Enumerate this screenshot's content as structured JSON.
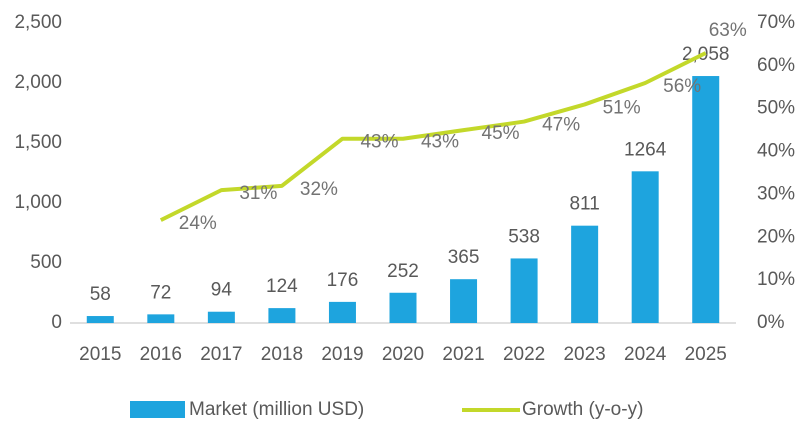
{
  "chart_data": {
    "type": "bar_line",
    "categories": [
      "2015",
      "2016",
      "2017",
      "2018",
      "2019",
      "2020",
      "2021",
      "2022",
      "2023",
      "2024",
      "2025"
    ],
    "series": [
      {
        "name": "Market (million USD)",
        "type": "bar",
        "color": "#1ea4de",
        "values": [
          58,
          72,
          94,
          124,
          176,
          252,
          365,
          538,
          811,
          1264,
          2058
        ],
        "value_labels": [
          "58",
          "72",
          "94",
          "124",
          "176",
          "252",
          "365",
          "538",
          "811",
          "1264",
          "2,058"
        ]
      },
      {
        "name": "Growth (y-o-y)",
        "type": "line",
        "axis": "y2",
        "color": "#c3d82a",
        "values": [
          null,
          24,
          31,
          32,
          43,
          43,
          45,
          47,
          51,
          56,
          63
        ],
        "value_labels": [
          null,
          "24%",
          "31%",
          "32%",
          "43%",
          "43%",
          "45%",
          "47%",
          "51%",
          "56%",
          "63%"
        ]
      }
    ],
    "ylim": [
      0,
      2500
    ],
    "yticks": [
      0,
      500,
      {
        "value": 1000,
        "label": "1,000"
      },
      {
        "value": 1500,
        "label": "1,500"
      },
      {
        "value": 2000,
        "label": "2,000"
      },
      {
        "value": 2500,
        "label": "2,500"
      }
    ],
    "y2lim": [
      0,
      70
    ],
    "y2ticks": [
      {
        "value": 0,
        "label": "0%"
      },
      {
        "value": 10,
        "label": "10%"
      },
      {
        "value": 20,
        "label": "20%"
      },
      {
        "value": 30,
        "label": "30%"
      },
      {
        "value": 40,
        "label": "40%"
      },
      {
        "value": 50,
        "label": "50%"
      },
      {
        "value": 60,
        "label": "60%"
      },
      {
        "value": 70,
        "label": "70%"
      }
    ],
    "grid": false
  }
}
